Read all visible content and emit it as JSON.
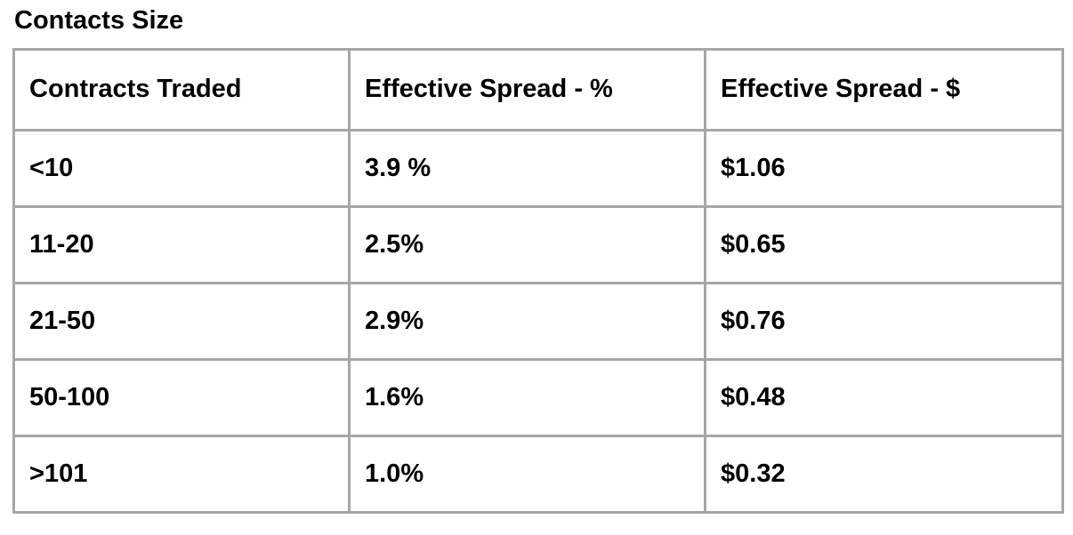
{
  "title": "Contacts Size",
  "colors": {
    "border": "#a6a6a6",
    "text": "#000000",
    "background": "#ffffff"
  },
  "table": {
    "columns": [
      "Contracts Traded",
      "Effective Spread - %",
      "Effective Spread - $"
    ],
    "rows": [
      [
        "<10",
        "3.9 %",
        "$1.06"
      ],
      [
        "11-20",
        "2.5%",
        "$0.65"
      ],
      [
        "21-50",
        "2.9%",
        "$0.76"
      ],
      [
        "50-100",
        "1.6%",
        "$0.48"
      ],
      [
        ">101",
        "1.0%",
        "$0.32"
      ]
    ]
  },
  "chart_data": {
    "type": "table",
    "title": "Contacts Size",
    "columns": [
      "Contracts Traded",
      "Effective Spread - %",
      "Effective Spread - $"
    ],
    "rows": [
      {
        "contracts_traded": "<10",
        "effective_spread_pct": 3.9,
        "effective_spread_usd": 1.06
      },
      {
        "contracts_traded": "11-20",
        "effective_spread_pct": 2.5,
        "effective_spread_usd": 0.65
      },
      {
        "contracts_traded": "21-50",
        "effective_spread_pct": 2.9,
        "effective_spread_usd": 0.76
      },
      {
        "contracts_traded": "50-100",
        "effective_spread_pct": 1.6,
        "effective_spread_usd": 0.48
      },
      {
        "contracts_traded": ">101",
        "effective_spread_pct": 1.0,
        "effective_spread_usd": 0.32
      }
    ]
  }
}
